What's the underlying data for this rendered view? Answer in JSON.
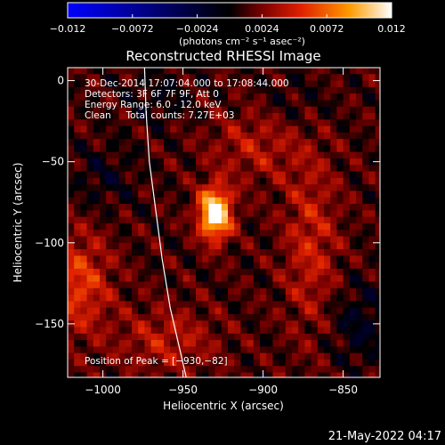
{
  "chart_data": {
    "type": "heatmap",
    "title": "Reconstructed RHESSI Image",
    "xlabel": "Heliocentric X (arcsec)",
    "ylabel": "Heliocentric Y (arcsec)",
    "xlim": [
      -1022,
      -827
    ],
    "ylim": [
      -183,
      8
    ],
    "x_ticks": [
      -1000,
      -950,
      -900,
      -850
    ],
    "y_ticks": [
      0,
      -50,
      -100,
      -150
    ],
    "x_tick_labels": [
      "−1000",
      "−950",
      "−900",
      "−850"
    ],
    "y_tick_labels": [
      "0",
      "−50",
      "−100",
      "−150"
    ],
    "colorbar": {
      "range": [
        -0.012,
        0.012
      ],
      "ticks": [
        -0.012,
        -0.0072,
        -0.0024,
        0.0024,
        0.0072,
        0.012
      ],
      "tick_labels": [
        "−0.012",
        "−0.0072",
        "−0.0024",
        "0.0024",
        "0.0072",
        "0.012"
      ],
      "units_label": "(photons cm⁻² s⁻¹ asec⁻²)",
      "colormap_stops": [
        "#0000ff",
        "#000000",
        "#7a0000",
        "#e02000",
        "#ff9a00",
        "#ffffff"
      ]
    },
    "annotations": [
      "30-Dec-2014 17:07:04.000 to 17:08:44.000",
      "Detectors: 3F 6F 7F 9F, Att 0",
      "Energy Range: 6.0 - 12.0 keV",
      "Clean     Total counts: 7.27E+03"
    ],
    "peak_label": "Position of Peak = [−930,−82]",
    "peak": {
      "x": -930,
      "y": -82,
      "value": 0.012
    },
    "limb": [
      [
        -974,
        8
      ],
      [
        -973,
        -20
      ],
      [
        -971,
        -50
      ],
      [
        -967,
        -80
      ],
      [
        -963,
        -110
      ],
      [
        -958,
        -140
      ],
      [
        -951,
        -170
      ],
      [
        -948,
        -183
      ]
    ],
    "sources": [
      {
        "x": -930,
        "y": -82,
        "amp": 0.012,
        "sigma_x": 7,
        "sigma_y": 11
      },
      {
        "x": -1015,
        "y": -125,
        "amp": 0.0045,
        "sigma_x": 14,
        "sigma_y": 22
      },
      {
        "x": -870,
        "y": -100,
        "amp": 0.0032,
        "sigma_x": 12,
        "sigma_y": 40
      },
      {
        "x": -905,
        "y": -40,
        "amp": 0.0026,
        "sigma_x": 20,
        "sigma_y": 16
      },
      {
        "x": -960,
        "y": -160,
        "amp": 0.0028,
        "sigma_x": 22,
        "sigma_y": 14
      },
      {
        "x": -840,
        "y": -150,
        "amp": -0.0022,
        "sigma_x": 14,
        "sigma_y": 18
      },
      {
        "x": -1000,
        "y": -60,
        "amp": -0.0016,
        "sigma_x": 14,
        "sigma_y": 14
      },
      {
        "x": -965,
        "y": -10,
        "amp": -0.0014,
        "sigma_x": 14,
        "sigma_y": 12
      },
      {
        "x": -880,
        "y": -15,
        "amp": -0.0012,
        "sigma_x": 16,
        "sigma_y": 12
      }
    ],
    "grid": false
  },
  "footer_timestamp": "21-May-2022 04:17"
}
